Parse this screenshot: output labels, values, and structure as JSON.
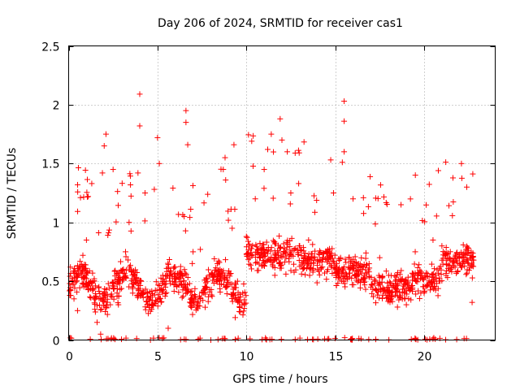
{
  "chart_data": {
    "type": "scatter",
    "title": "Day 206 of 2024, SRMTID for receiver cas1",
    "xlabel": "GPS time / hours",
    "ylabel": "SRMTID / TECUs",
    "xlim": [
      0,
      24
    ],
    "ylim": [
      0,
      2.5
    ],
    "x_ticks": [
      0,
      5,
      10,
      15,
      20
    ],
    "y_ticks": [
      0,
      0.5,
      1,
      1.5,
      2,
      2.5
    ],
    "x_tick_labels": [
      "0",
      "5",
      "10",
      "15",
      "20"
    ],
    "y_tick_labels": [
      "0",
      "0.5",
      "1",
      "1.5",
      "2",
      "2.5"
    ],
    "grid": true,
    "series": [
      {
        "name": "SRMTID",
        "color": "#ff0000",
        "marker": "plus",
        "summary": "About 1,500 points spanning 0 to 22.8 hours, mostly between 0.2 and 1.0 TECU; periodic spikes reach about 1.2 to 2.1 TECU",
        "sample_points": [
          [
            0.1,
            0.62
          ],
          [
            0.3,
            0.35
          ],
          [
            0.5,
            0.25
          ],
          [
            0.8,
            0.72
          ],
          [
            1.0,
            0.85
          ],
          [
            1.1,
            1.22
          ],
          [
            1.3,
            1.33
          ],
          [
            1.6,
            0.15
          ],
          [
            1.8,
            0.05
          ],
          [
            1.9,
            1.42
          ],
          [
            2.0,
            1.65
          ],
          [
            2.1,
            1.75
          ],
          [
            2.5,
            1.45
          ],
          [
            2.8,
            0.3
          ],
          [
            3.2,
            0.75
          ],
          [
            3.4,
            1.0
          ],
          [
            3.6,
            0.45
          ],
          [
            3.9,
            1.42
          ],
          [
            4.0,
            2.09
          ],
          [
            4.0,
            1.82
          ],
          [
            4.3,
            1.25
          ],
          [
            4.6,
            0.0
          ],
          [
            5.0,
            1.72
          ],
          [
            5.1,
            1.5
          ],
          [
            5.3,
            0.55
          ],
          [
            5.6,
            0.1
          ],
          [
            6.0,
            0.62
          ],
          [
            6.5,
            1.05
          ],
          [
            6.6,
            1.95
          ],
          [
            6.6,
            1.85
          ],
          [
            6.7,
            1.66
          ],
          [
            7.0,
            0.75
          ],
          [
            7.5,
            0.4
          ],
          [
            8.0,
            0.0
          ],
          [
            8.5,
            0.55
          ],
          [
            8.7,
            1.45
          ],
          [
            8.8,
            1.55
          ],
          [
            9.2,
            0.95
          ],
          [
            9.3,
            1.66
          ],
          [
            9.5,
            0.5
          ],
          [
            10.0,
            0.88
          ],
          [
            10.3,
            1.69
          ],
          [
            10.5,
            1.2
          ],
          [
            11.0,
            1.45
          ],
          [
            11.2,
            1.62
          ],
          [
            11.4,
            1.75
          ],
          [
            11.6,
            0.55
          ],
          [
            11.9,
            1.88
          ],
          [
            12.0,
            1.7
          ],
          [
            12.3,
            1.6
          ],
          [
            12.5,
            1.25
          ],
          [
            13.0,
            0.8
          ],
          [
            13.5,
            0.85
          ],
          [
            14.0,
            0.6
          ],
          [
            14.5,
            0.75
          ],
          [
            14.9,
            1.25
          ],
          [
            15.3,
            0.7
          ],
          [
            15.5,
            2.03
          ],
          [
            15.5,
            1.86
          ],
          [
            15.5,
            1.6
          ],
          [
            16.0,
            1.2
          ],
          [
            16.5,
            0.6
          ],
          [
            17.0,
            0.45
          ],
          [
            17.5,
            0.7
          ],
          [
            18.0,
            0.45
          ],
          [
            18.5,
            0.28
          ],
          [
            18.7,
            1.15
          ],
          [
            19.0,
            0.3
          ],
          [
            19.5,
            0.75
          ],
          [
            20.0,
            0.4
          ],
          [
            20.5,
            0.85
          ],
          [
            20.8,
            1.44
          ],
          [
            21.0,
            0.8
          ],
          [
            21.5,
            0.6
          ],
          [
            22.0,
            0.65
          ],
          [
            22.1,
            1.5
          ],
          [
            22.4,
            1.3
          ],
          [
            22.7,
            0.32
          ]
        ]
      }
    ]
  }
}
